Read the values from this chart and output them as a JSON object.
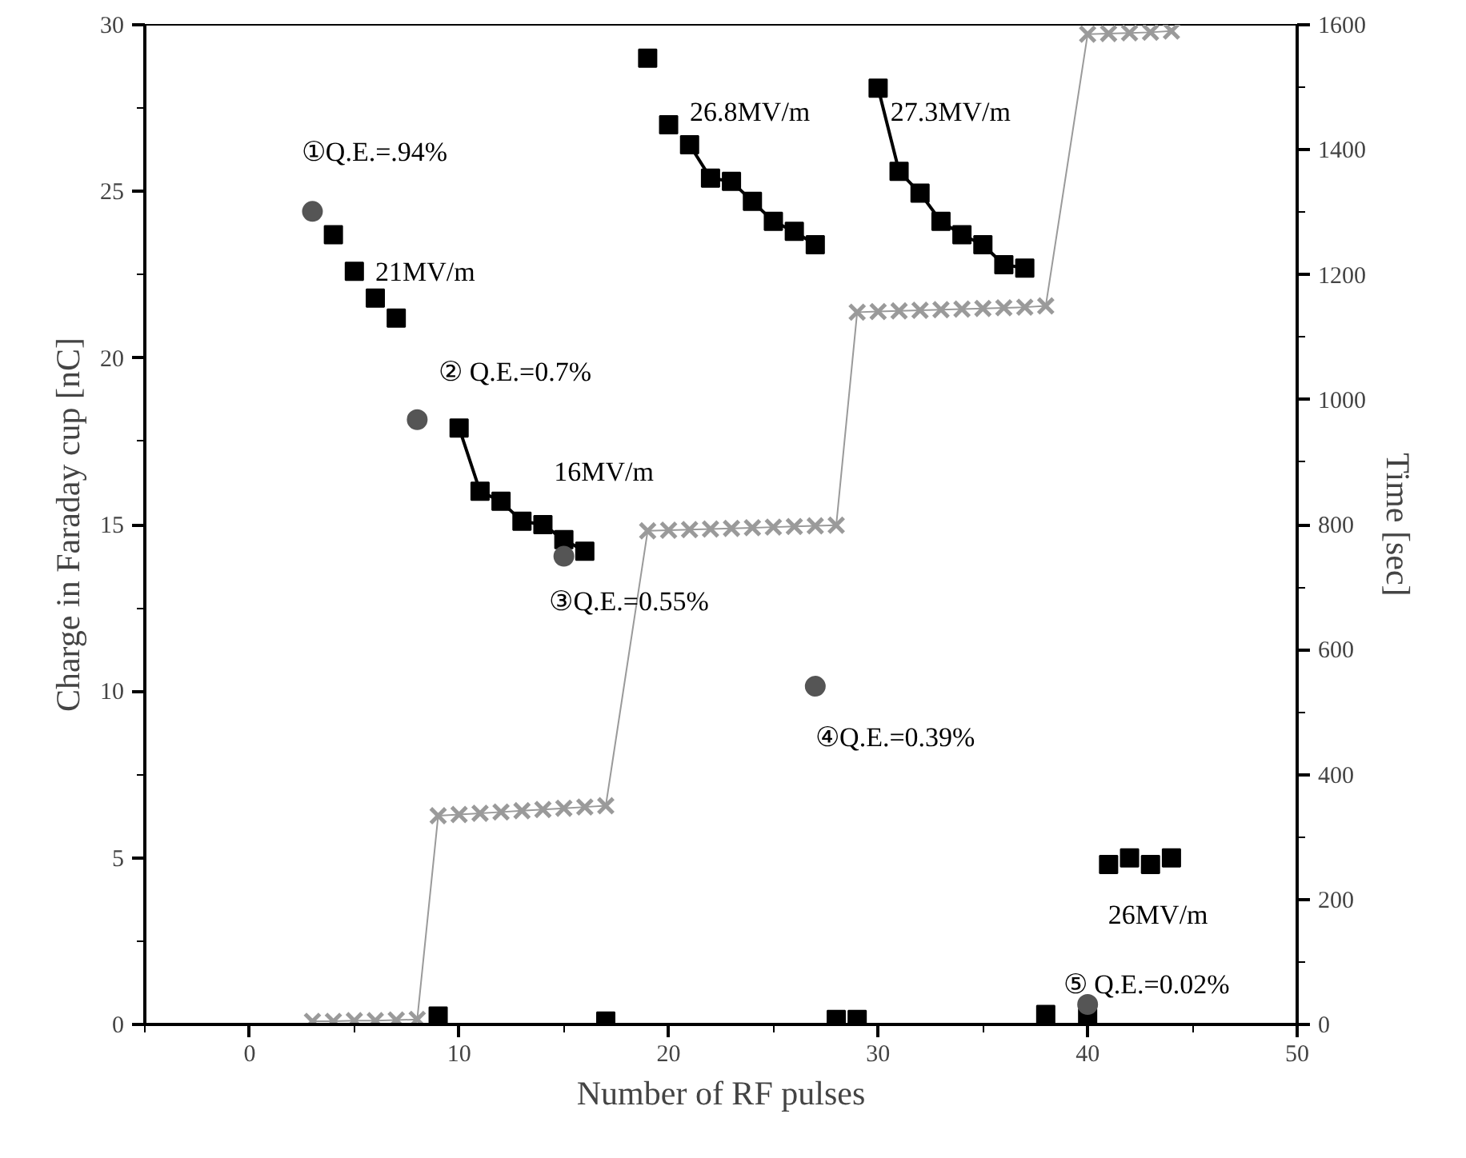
{
  "chart_data": {
    "type": "scatter",
    "xlabel": "Number of RF pulses",
    "ylabel": "Charge in Faraday cup [nC]",
    "y2label": "Time [sec]",
    "xlim": [
      -5,
      50
    ],
    "xticks": [
      0,
      10,
      20,
      30,
      40,
      50
    ],
    "ylim": [
      0,
      30
    ],
    "yticks": [
      0,
      5,
      10,
      15,
      20,
      25,
      30
    ],
    "y2lim": [
      0,
      1600
    ],
    "y2ticks": [
      0,
      200,
      400,
      600,
      800,
      1000,
      1200,
      1400,
      1600
    ],
    "grid": false,
    "series": [
      {
        "type": "line",
        "color": "#000000",
        "marker": "none",
        "x": [
          10,
          11,
          12,
          13,
          14,
          15,
          16
        ],
        "values": [
          17.9,
          16.0,
          15.7,
          15.1,
          15.0,
          14.55,
          14.2
        ]
      },
      {
        "type": "line",
        "color": "#000000",
        "marker": "none",
        "x": [
          21,
          22,
          23,
          24,
          25,
          26,
          27
        ],
        "values": [
          26.4,
          25.4,
          25.3,
          24.7,
          24.1,
          23.8,
          23.4
        ]
      },
      {
        "type": "line",
        "color": "#000000",
        "marker": "none",
        "x": [
          30,
          31,
          32,
          33,
          34,
          35,
          36,
          37
        ],
        "values": [
          28.1,
          25.6,
          24.95,
          24.1,
          23.7,
          23.4,
          22.8,
          22.7
        ]
      },
      {
        "type": "line",
        "axis": "y2",
        "color": "#9a9a9a",
        "marker": "cross",
        "x": [
          3,
          4,
          5,
          6,
          7,
          8,
          9,
          10,
          11,
          12,
          13,
          14,
          15,
          16,
          17,
          19,
          20,
          21,
          22,
          23,
          24,
          25,
          26,
          27,
          28,
          29,
          30,
          31,
          32,
          33,
          34,
          35,
          36,
          37,
          38,
          40,
          41,
          42,
          43,
          44
        ],
        "values": [
          5,
          5,
          6,
          6,
          7,
          8,
          334,
          336,
          338,
          340,
          342,
          344,
          346,
          348,
          350,
          790,
          791,
          792,
          793,
          794,
          795,
          796,
          797,
          798,
          799,
          1140,
          1141,
          1142,
          1143,
          1144,
          1145,
          1146,
          1147,
          1148,
          1150,
          1585,
          1586,
          1587,
          1588,
          1590
        ]
      },
      {
        "color": "#000000",
        "marker": "square",
        "x": [
          4,
          5,
          6,
          7,
          9,
          10,
          11,
          12,
          13,
          14,
          15,
          16,
          17,
          19,
          20,
          21,
          22,
          23,
          24,
          25,
          26,
          27,
          28,
          29,
          30,
          31,
          32,
          33,
          34,
          35,
          36,
          37,
          38,
          40,
          41,
          42,
          43,
          44
        ],
        "values": [
          23.7,
          22.6,
          21.8,
          21.2,
          0.25,
          17.9,
          16.0,
          15.7,
          15.1,
          15.0,
          14.55,
          14.2,
          0.1,
          29.0,
          27.0,
          26.4,
          25.4,
          25.3,
          24.7,
          24.1,
          23.8,
          23.4,
          0.15,
          0.15,
          28.1,
          25.6,
          24.95,
          24.1,
          23.7,
          23.4,
          22.8,
          22.7,
          0.3,
          0.2,
          4.8,
          5.0,
          4.8,
          5.0
        ]
      },
      {
        "color": "#555555",
        "marker": "circle",
        "x": [
          3,
          8,
          15,
          27,
          40
        ],
        "values": [
          24.4,
          18.15,
          14.05,
          10.15,
          0.6
        ]
      }
    ],
    "annotations": [
      "①Q.E.=.94%",
      "21MV/m",
      "② Q.E.=0.7%",
      "16MV/m",
      "③Q.E.=0.55%",
      "26.8MV/m",
      "27.3MV/m",
      "④Q.E.=0.39%",
      "26MV/m",
      "⑤  Q.E.=0.02%"
    ]
  }
}
